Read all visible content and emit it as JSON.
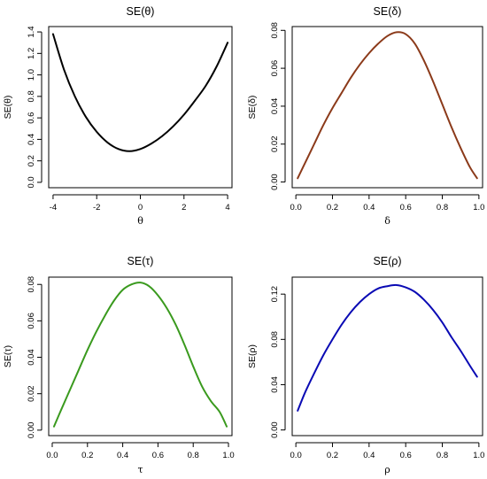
{
  "chart_data": [
    {
      "type": "line",
      "title": "SE(θ)",
      "xlabel": "θ",
      "ylabel": "SE(θ)",
      "xlim": [
        -4.2,
        4.2
      ],
      "ylim": [
        -0.05,
        1.45
      ],
      "xticks": [
        -4,
        -2,
        0,
        2,
        4
      ],
      "xtick_labels": [
        "-4",
        "-2",
        "0",
        "2",
        "4"
      ],
      "yticks": [
        0.0,
        0.2,
        0.4,
        0.6,
        0.8,
        1.0,
        1.2,
        1.4
      ],
      "ytick_labels": [
        "0.0",
        "0.2",
        "0.4",
        "0.6",
        "0.8",
        "1.0",
        "1.2",
        "1.4"
      ],
      "color": "#000000",
      "x": [
        -4,
        -3.5,
        -3,
        -2.5,
        -2,
        -1.5,
        -1,
        -0.5,
        0,
        0.5,
        1,
        1.5,
        2,
        2.5,
        3,
        3.5,
        4
      ],
      "y": [
        1.38,
        1.05,
        0.8,
        0.61,
        0.47,
        0.37,
        0.31,
        0.29,
        0.31,
        0.36,
        0.43,
        0.52,
        0.63,
        0.76,
        0.9,
        1.08,
        1.3
      ]
    },
    {
      "type": "line",
      "title": "SE(δ)",
      "xlabel": "δ",
      "ylabel": "SE(δ)",
      "xlim": [
        -0.02,
        1.02
      ],
      "ylim": [
        -0.003,
        0.082
      ],
      "xticks": [
        0.0,
        0.2,
        0.4,
        0.6,
        0.8,
        1.0
      ],
      "xtick_labels": [
        "0.0",
        "0.2",
        "0.4",
        "0.6",
        "0.8",
        "1.0"
      ],
      "yticks": [
        0.0,
        0.02,
        0.04,
        0.06,
        0.08
      ],
      "ytick_labels": [
        "0.00",
        "0.02",
        "0.04",
        "0.06",
        "0.08"
      ],
      "color": "#8B3A1A",
      "x": [
        0.01,
        0.05,
        0.1,
        0.15,
        0.2,
        0.25,
        0.3,
        0.35,
        0.4,
        0.45,
        0.5,
        0.55,
        0.6,
        0.65,
        0.7,
        0.75,
        0.8,
        0.85,
        0.9,
        0.95,
        0.99
      ],
      "y": [
        0.002,
        0.01,
        0.02,
        0.03,
        0.039,
        0.047,
        0.055,
        0.062,
        0.068,
        0.073,
        0.077,
        0.079,
        0.078,
        0.073,
        0.064,
        0.053,
        0.041,
        0.029,
        0.018,
        0.008,
        0.002
      ]
    },
    {
      "type": "line",
      "title": "SE(τ)",
      "xlabel": "τ",
      "ylabel": "SE(τ)",
      "xlim": [
        -0.02,
        1.02
      ],
      "ylim": [
        -0.003,
        0.084
      ],
      "xticks": [
        0.0,
        0.2,
        0.4,
        0.6,
        0.8,
        1.0
      ],
      "xtick_labels": [
        "0.0",
        "0.2",
        "0.4",
        "0.6",
        "0.8",
        "1.0"
      ],
      "yticks": [
        0.0,
        0.02,
        0.04,
        0.06,
        0.08
      ],
      "ytick_labels": [
        "0.00",
        "0.02",
        "0.04",
        "0.06",
        "0.08"
      ],
      "color": "#3A9A1E",
      "x": [
        0.01,
        0.05,
        0.1,
        0.15,
        0.2,
        0.25,
        0.3,
        0.35,
        0.4,
        0.45,
        0.5,
        0.55,
        0.6,
        0.65,
        0.7,
        0.75,
        0.8,
        0.85,
        0.9,
        0.95,
        0.99
      ],
      "y": [
        0.002,
        0.011,
        0.022,
        0.033,
        0.044,
        0.054,
        0.063,
        0.071,
        0.077,
        0.08,
        0.081,
        0.079,
        0.074,
        0.067,
        0.058,
        0.047,
        0.035,
        0.024,
        0.016,
        0.01,
        0.002
      ]
    },
    {
      "type": "line",
      "title": "SE(ρ)",
      "xlabel": "ρ",
      "ylabel": "SE(ρ)",
      "xlim": [
        -0.02,
        1.02
      ],
      "ylim": [
        -0.005,
        0.135
      ],
      "xticks": [
        0.0,
        0.2,
        0.4,
        0.6,
        0.8,
        1.0
      ],
      "xtick_labels": [
        "0.0",
        "0.2",
        "0.4",
        "0.6",
        "0.8",
        "1.0"
      ],
      "yticks": [
        0.0,
        0.04,
        0.08,
        0.12
      ],
      "ytick_labels": [
        "0.00",
        "0.04",
        "0.08",
        "0.12"
      ],
      "color": "#0A0AB4",
      "x": [
        0.01,
        0.05,
        0.1,
        0.15,
        0.2,
        0.25,
        0.3,
        0.35,
        0.4,
        0.45,
        0.5,
        0.55,
        0.6,
        0.65,
        0.7,
        0.75,
        0.8,
        0.85,
        0.9,
        0.95,
        0.99
      ],
      "y": [
        0.017,
        0.033,
        0.05,
        0.066,
        0.08,
        0.093,
        0.104,
        0.113,
        0.12,
        0.125,
        0.127,
        0.128,
        0.126,
        0.122,
        0.115,
        0.106,
        0.095,
        0.082,
        0.07,
        0.057,
        0.047
      ]
    }
  ]
}
